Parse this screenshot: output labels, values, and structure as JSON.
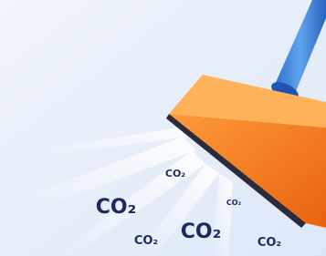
{
  "labels": [
    "CO₂",
    "CO₂",
    "CO₂",
    "CO₂",
    "CO₂",
    "CO₂"
  ]
}
